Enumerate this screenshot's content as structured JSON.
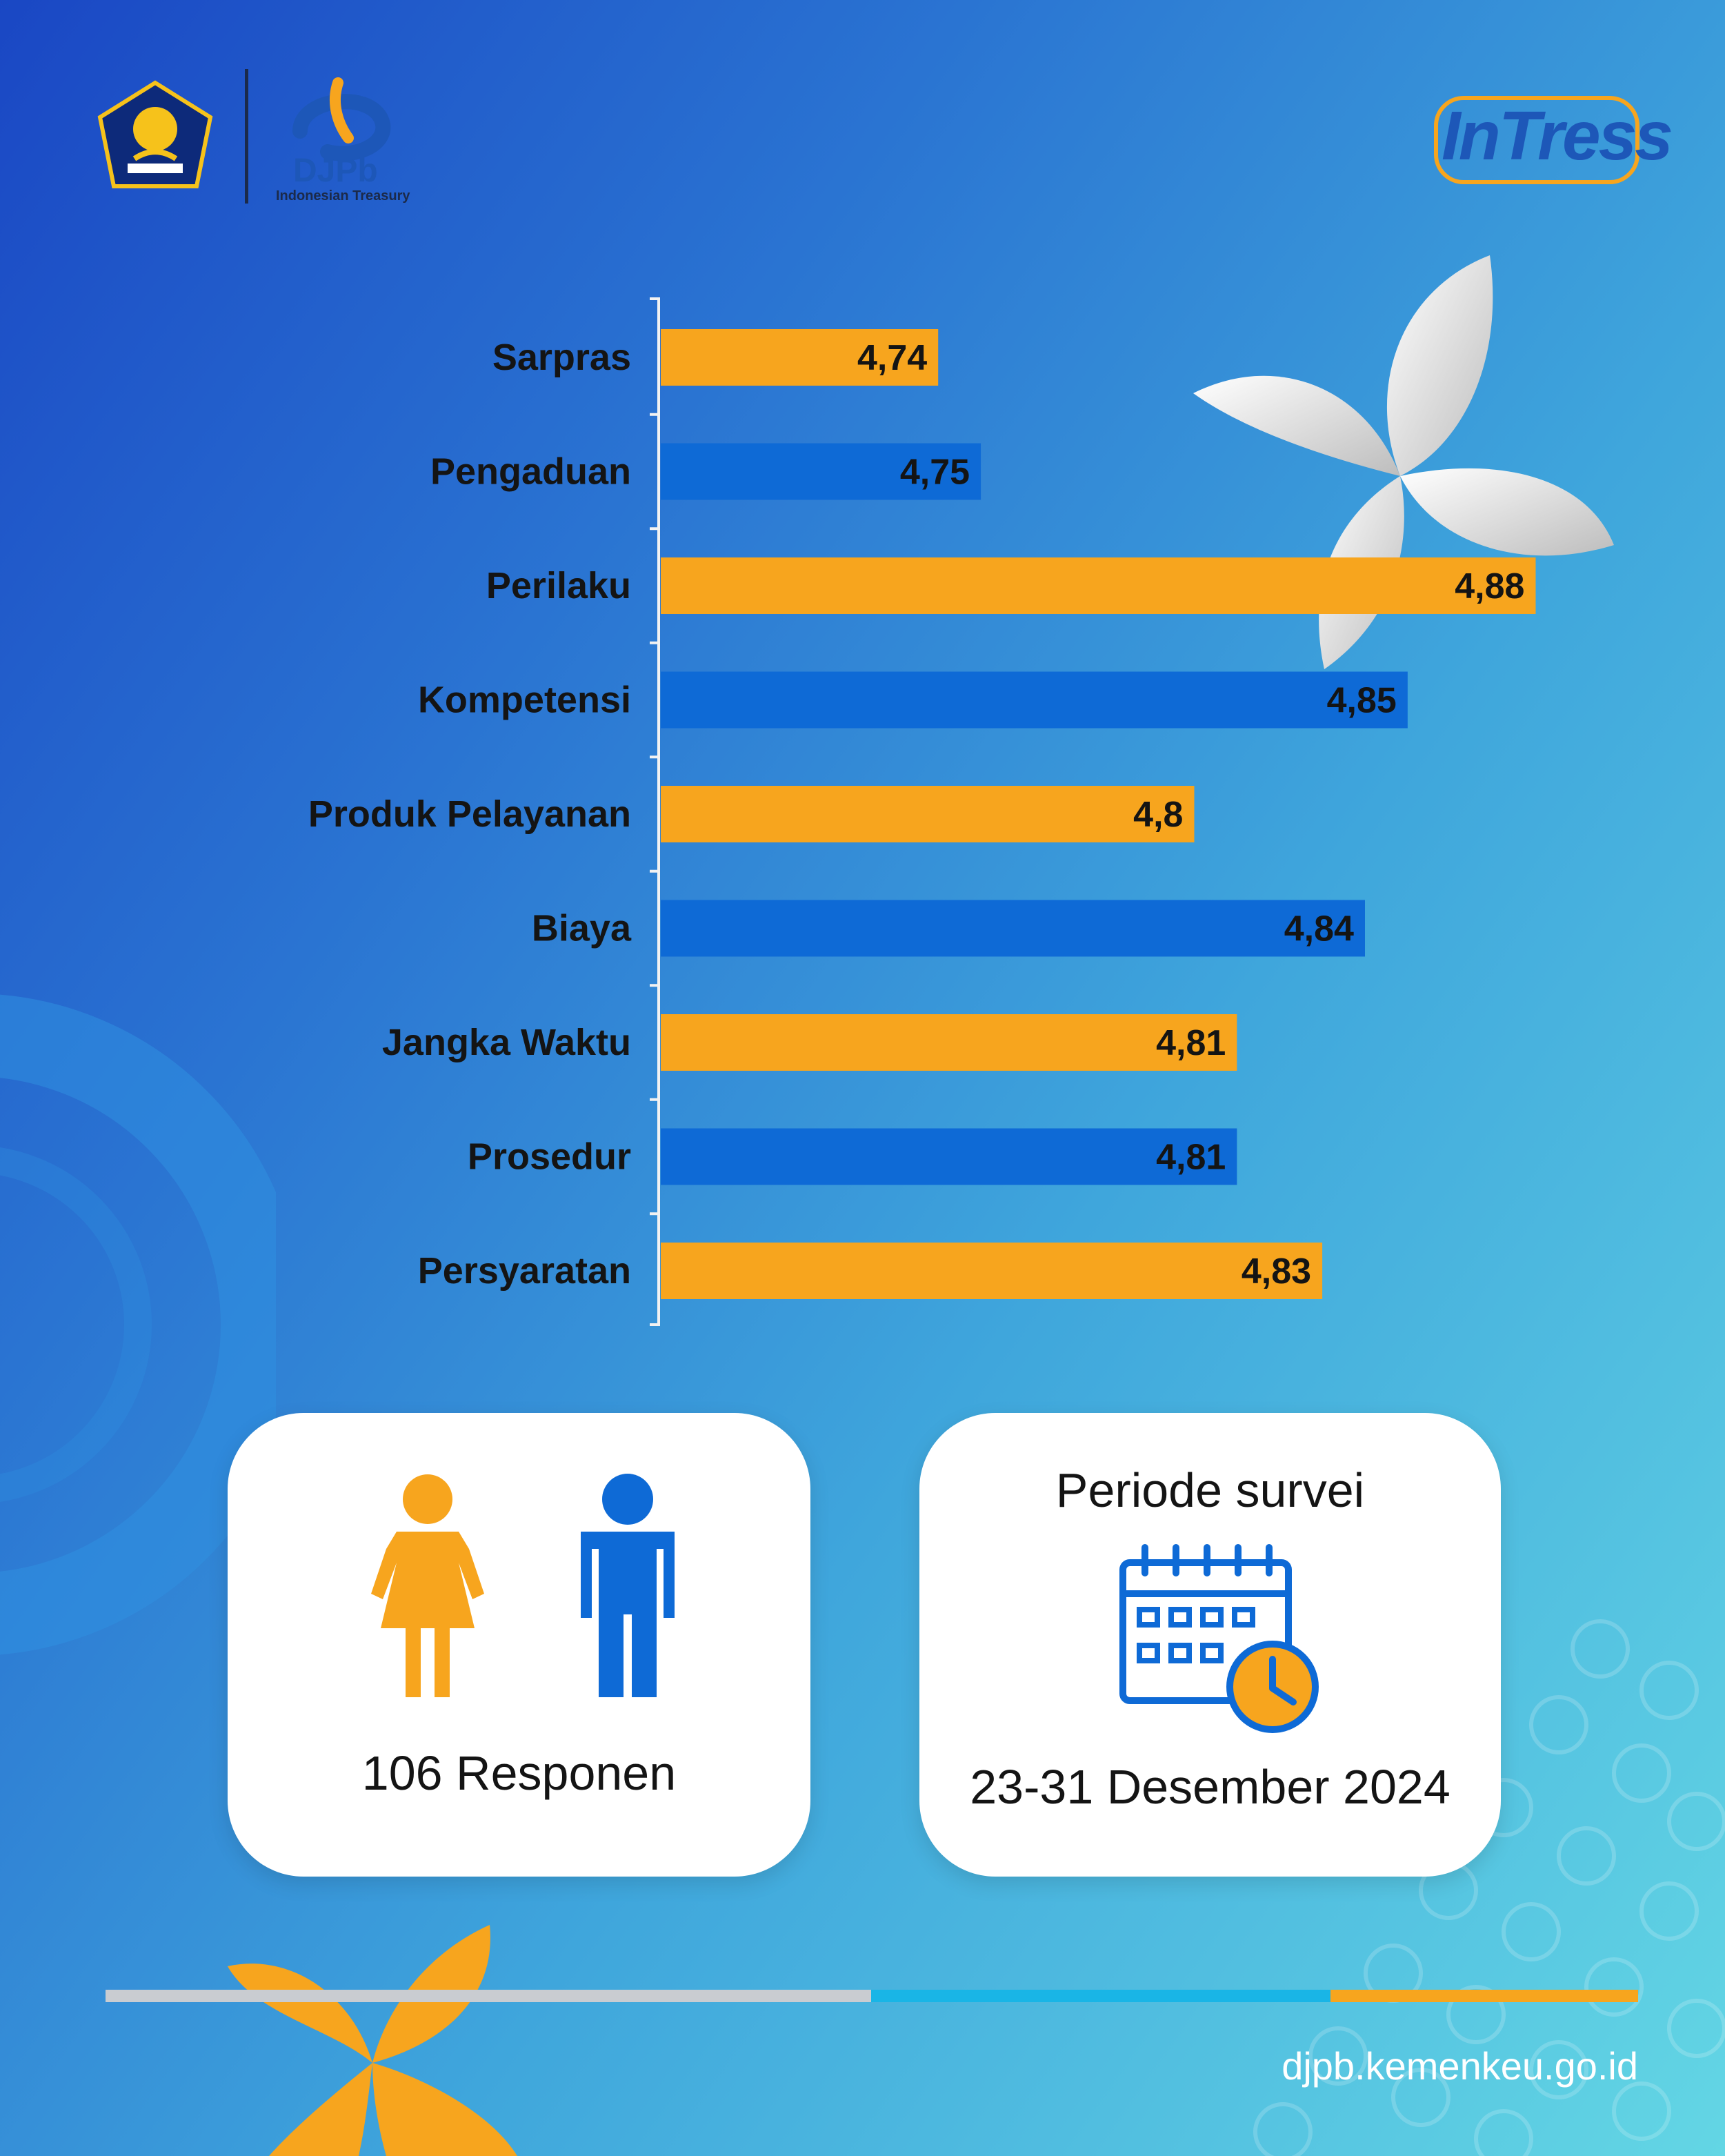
{
  "header": {
    "djpb_name": "DJPb",
    "djpb_tagline": "Indonesian Treasury",
    "intress_logo_text": "InTress"
  },
  "colors": {
    "orange": "#f7a51e",
    "blue": "#0e6ad6",
    "text": "#141414",
    "card": "#ffffff"
  },
  "chart_data": {
    "type": "bar",
    "orientation": "horizontal",
    "categories": [
      "Sarpras",
      "Pengaduan",
      "Perilaku",
      "Kompetensi",
      "Produk Pelayanan",
      "Biaya",
      "Jangka Waktu",
      "Prosedur",
      "Persyaratan"
    ],
    "values": [
      4.74,
      4.75,
      4.88,
      4.85,
      4.8,
      4.84,
      4.81,
      4.81,
      4.83
    ],
    "value_labels": [
      "4,74",
      "4,75",
      "4,88",
      "4,85",
      "4,8",
      "4,84",
      "4,81",
      "4,81",
      "4,83"
    ],
    "bar_colors": [
      "#f7a51e",
      "#0e6ad6",
      "#f7a51e",
      "#0e6ad6",
      "#f7a51e",
      "#0e6ad6",
      "#f7a51e",
      "#0e6ad6",
      "#f7a51e"
    ],
    "title": "",
    "xlabel": "",
    "ylabel": "",
    "grid": false,
    "legend": "none"
  },
  "respondents": {
    "text": "106 Responen"
  },
  "period": {
    "title": "Periode survei",
    "dates": "23-31 Desember 2024"
  },
  "footer": {
    "website": "djpb.kemenkeu.go.id"
  }
}
